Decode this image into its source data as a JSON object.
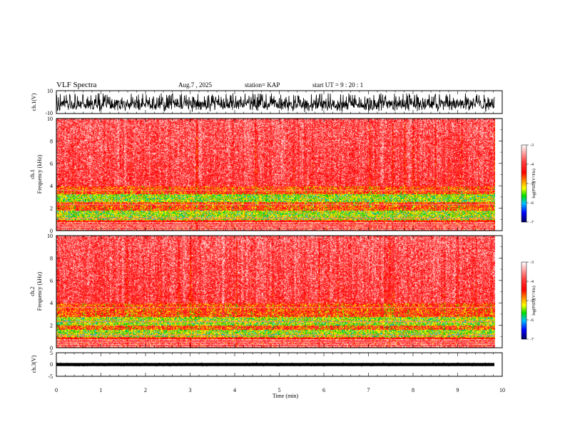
{
  "header": {
    "title": "VLF Spectra",
    "date": "Aug.7 , 2025",
    "station": "station= KAP",
    "start": "start UT = 9 : 20 : 1"
  },
  "colors": {
    "background": "#ffffff",
    "axis": "#000000",
    "colormap": [
      "#ffffff",
      "#ff0000",
      "#ffa000",
      "#ffff00",
      "#00dd00",
      "#00c0ff",
      "#0000ff",
      "#000080"
    ]
  },
  "chart_data": [
    {
      "type": "line",
      "panel": "ch1-waveform",
      "ylabel": "ch.1(V)",
      "ylim": [
        -10,
        10
      ],
      "yticks": [
        "10",
        "-10"
      ],
      "xlim": [
        0,
        10
      ],
      "description_values": {
        "center": -2,
        "amplitude": 7
      }
    },
    {
      "type": "heatmap",
      "panel": "ch1-spectrogram",
      "ylabel_channel": "ch.1",
      "ylabel": "Frequency (kHz)",
      "ylim": [
        0,
        10
      ],
      "yticks": [
        "0",
        "2",
        "4",
        "6",
        "8",
        "10"
      ],
      "xlim": [
        0,
        10
      ],
      "green_band_khz": [
        [
          1.0,
          1.8
        ],
        [
          2.6,
          3.3
        ]
      ],
      "colorbar": {
        "label": "log(PSD)(V²/Hz)",
        "range": [
          -7,
          -3
        ],
        "ticks": [
          "-3",
          "-4",
          "-5",
          "-6",
          "-7"
        ]
      }
    },
    {
      "type": "heatmap",
      "panel": "ch2-spectrogram",
      "ylabel_channel": "ch.2",
      "ylabel": "Frequency (kHz)",
      "ylim": [
        0,
        10
      ],
      "yticks": [
        "0",
        "2",
        "4",
        "6",
        "8",
        "10"
      ],
      "xlim": [
        0,
        10
      ],
      "green_band_khz": [
        [
          1.0,
          1.6
        ],
        [
          2.0,
          2.8
        ]
      ],
      "colorbar": {
        "label": "log(PSD)(V²/Hz)",
        "range": [
          -7,
          -3
        ],
        "ticks": [
          "-3",
          "-4",
          "-5",
          "-6",
          "-7"
        ]
      }
    },
    {
      "type": "line",
      "panel": "ch3-waveform",
      "ylabel": "ch.3(V)",
      "ylim": [
        -5,
        5
      ],
      "yticks": [
        "5",
        "0",
        "-5"
      ],
      "xlim": [
        0,
        10
      ],
      "xlabel": "Time (min)",
      "xticks": [
        "0",
        "1",
        "2",
        "3",
        "4",
        "5",
        "6",
        "7",
        "8",
        "9",
        "10"
      ],
      "description_values": {
        "center": 0,
        "amplitude": 0.6
      }
    }
  ]
}
